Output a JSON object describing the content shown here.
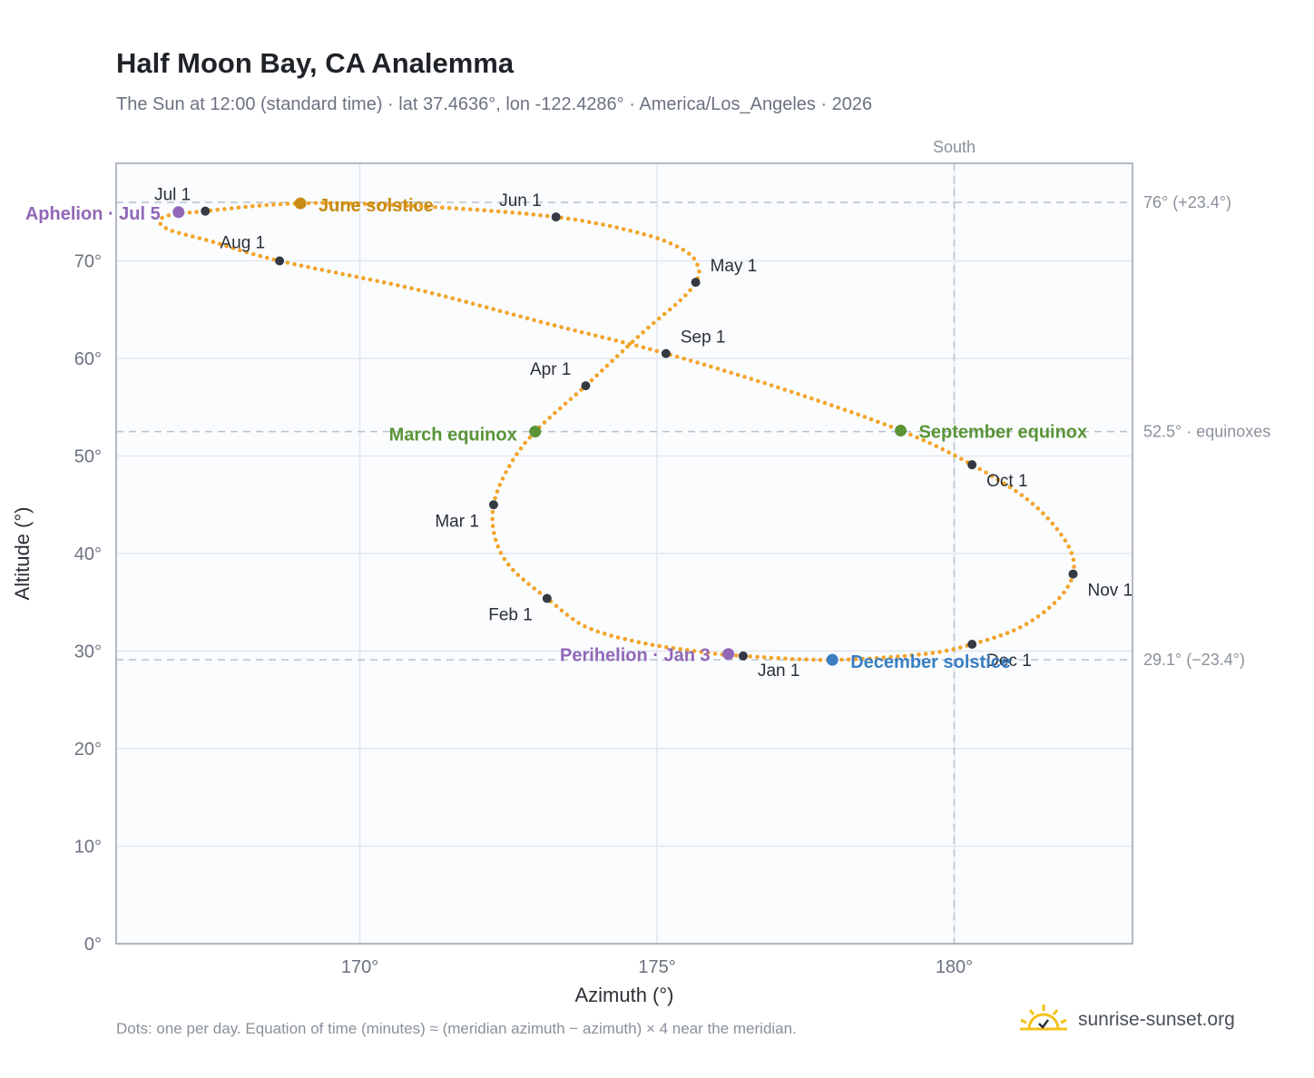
{
  "title": "Half Moon Bay, CA Analemma",
  "subtitle": "The Sun at 12:00 (standard time) · lat 37.4636°, lon -122.4286° · America/Los_Angeles · 2026",
  "footnote": "Dots: one per day. Equation of time (minutes) ≈ (meridian azimuth − azimuth) × 4 near the meridian.",
  "brand": {
    "text": "sunrise-sunset.org",
    "icon": "sun-logo-icon"
  },
  "colors": {
    "curve": "#f2a52b",
    "month_marker": "#353a42",
    "equinox": "#5a9436",
    "june_solstice": "#c98a12",
    "december_solstice": "#3a7fc4",
    "apsis": "#9167b8",
    "reference_line": "#b9c2cb",
    "grid": "#e3e8ee",
    "plot_bg": "#fafcfe",
    "frame": "#9aa3ad",
    "tick_text": "#6b7280",
    "ref_text": "#8a919b"
  },
  "chart_data": {
    "type": "scatter",
    "title": "Half Moon Bay, CA Analemma",
    "xlabel": "Azimuth (°)",
    "ylabel": "Altitude (°)",
    "xlim": [
      165.9,
      183.0
    ],
    "ylim": [
      0,
      80
    ],
    "x_ticks": [
      170,
      175,
      180
    ],
    "x_tick_labels": [
      "170°",
      "175°",
      "180°"
    ],
    "y_ticks": [
      0,
      10,
      20,
      30,
      40,
      50,
      60,
      70
    ],
    "y_tick_labels": [
      "0°",
      "10°",
      "20°",
      "30°",
      "40°",
      "50°",
      "60°",
      "70°"
    ],
    "grid": true,
    "meridian": {
      "azimuth": 180,
      "label": "South"
    },
    "reference_lines": [
      {
        "altitude": 76.0,
        "label": "76° (+23.4°)"
      },
      {
        "altitude": 52.5,
        "label": "52.5° · equinoxes"
      },
      {
        "altitude": 29.1,
        "label": "29.1° (−23.4°)"
      }
    ],
    "month_markers": [
      {
        "label": "Jan 1",
        "azimuth": 176.45,
        "altitude": 29.5
      },
      {
        "label": "Feb 1",
        "azimuth": 173.15,
        "altitude": 35.4
      },
      {
        "label": "Mar 1",
        "azimuth": 172.25,
        "altitude": 45.0
      },
      {
        "label": "Apr 1",
        "azimuth": 173.8,
        "altitude": 57.2
      },
      {
        "label": "May 1",
        "azimuth": 175.65,
        "altitude": 67.8
      },
      {
        "label": "Jun 1",
        "azimuth": 173.3,
        "altitude": 74.5
      },
      {
        "label": "Jul 1",
        "azimuth": 167.4,
        "altitude": 75.1
      },
      {
        "label": "Aug 1",
        "azimuth": 168.65,
        "altitude": 70.0
      },
      {
        "label": "Sep 1",
        "azimuth": 175.15,
        "altitude": 60.5
      },
      {
        "label": "Oct 1",
        "azimuth": 180.3,
        "altitude": 49.1
      },
      {
        "label": "Nov 1",
        "azimuth": 182.0,
        "altitude": 37.9
      },
      {
        "label": "Dec 1",
        "azimuth": 180.3,
        "altitude": 30.7
      }
    ],
    "events": [
      {
        "label": "March equinox",
        "azimuth": 172.95,
        "altitude": 52.5,
        "color_key": "equinox"
      },
      {
        "label": "June solstice",
        "azimuth": 169.0,
        "altitude": 75.9,
        "color_key": "june_solstice"
      },
      {
        "label": "September equinox",
        "azimuth": 179.1,
        "altitude": 52.6,
        "color_key": "equinox"
      },
      {
        "label": "December solstice",
        "azimuth": 177.95,
        "altitude": 29.1,
        "color_key": "december_solstice"
      },
      {
        "label": "Perihelion · Jan 3",
        "azimuth": 176.2,
        "altitude": 29.7,
        "color_key": "apsis"
      },
      {
        "label": "Aphelion · Jul 5",
        "azimuth": 166.95,
        "altitude": 75.0,
        "color_key": "apsis"
      }
    ],
    "analemma_path": [
      [
        176.45,
        29.5
      ],
      [
        175.7,
        29.95
      ],
      [
        174.7,
        30.9
      ],
      [
        173.8,
        32.5
      ],
      [
        173.15,
        35.4
      ],
      [
        172.55,
        38.5
      ],
      [
        172.28,
        41.5
      ],
      [
        172.25,
        45.0
      ],
      [
        172.5,
        48.8
      ],
      [
        172.95,
        52.5
      ],
      [
        173.8,
        57.2
      ],
      [
        174.75,
        62.6
      ],
      [
        175.4,
        66.0
      ],
      [
        175.65,
        67.8
      ],
      [
        175.7,
        69.2
      ],
      [
        175.5,
        70.9
      ],
      [
        174.8,
        72.7
      ],
      [
        173.3,
        74.5
      ],
      [
        171.0,
        75.6
      ],
      [
        169.0,
        75.9
      ],
      [
        167.4,
        75.1
      ],
      [
        166.7,
        74.5
      ],
      [
        166.75,
        73.3
      ],
      [
        167.5,
        72.0
      ],
      [
        168.65,
        70.0
      ],
      [
        171.0,
        67.0
      ],
      [
        173.2,
        63.5
      ],
      [
        175.15,
        60.5
      ],
      [
        177.3,
        56.5
      ],
      [
        179.1,
        52.6
      ],
      [
        180.3,
        49.1
      ],
      [
        181.3,
        45.2
      ],
      [
        181.9,
        41.0
      ],
      [
        182.0,
        37.9
      ],
      [
        181.7,
        35.0
      ],
      [
        181.1,
        32.4
      ],
      [
        180.3,
        30.7
      ],
      [
        179.5,
        29.7
      ],
      [
        177.95,
        29.1
      ],
      [
        176.45,
        29.5
      ]
    ]
  }
}
